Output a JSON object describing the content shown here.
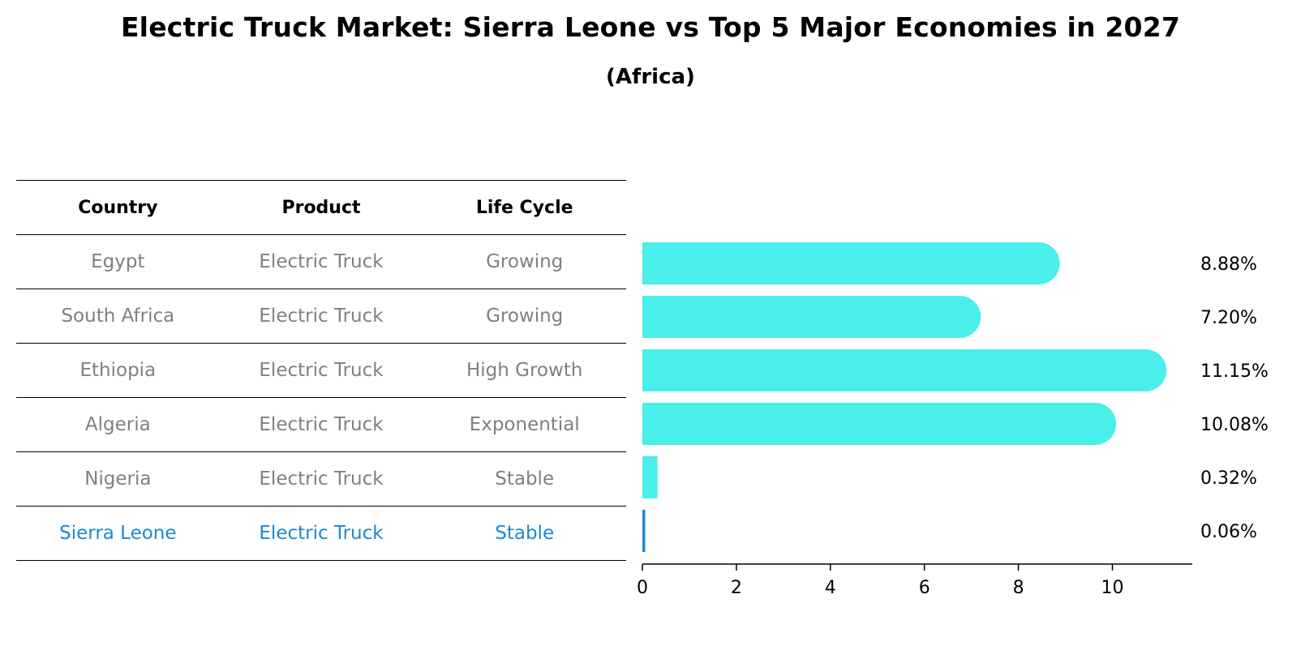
{
  "title": "Electric Truck Market: Sierra Leone vs Top 5 Major Economies in 2027",
  "subtitle": "(Africa)",
  "table": {
    "headers": [
      "Country",
      "Product",
      "Life Cycle"
    ],
    "rows": [
      {
        "country": "Egypt",
        "product": "Electric Truck",
        "life_cycle": "Growing"
      },
      {
        "country": "South Africa",
        "product": "Electric Truck",
        "life_cycle": "Growing"
      },
      {
        "country": "Ethiopia",
        "product": "Electric Truck",
        "life_cycle": "High Growth"
      },
      {
        "country": "Algeria",
        "product": "Electric Truck",
        "life_cycle": "Exponential"
      },
      {
        "country": "Nigeria",
        "product": "Electric Truck",
        "life_cycle": "Stable"
      },
      {
        "country": "Sierra Leone",
        "product": "Electric Truck",
        "life_cycle": "Stable"
      }
    ]
  },
  "chart_data": {
    "type": "bar",
    "orientation": "horizontal",
    "categories": [
      "Egypt",
      "South Africa",
      "Ethiopia",
      "Algeria",
      "Nigeria",
      "Sierra Leone"
    ],
    "values": [
      8.88,
      7.2,
      11.15,
      10.08,
      0.32,
      0.06
    ],
    "value_labels": [
      "8.88%",
      "7.20%",
      "11.15%",
      "10.08%",
      "0.32%",
      "0.06%"
    ],
    "xlim": [
      0,
      11.7
    ],
    "xticks": [
      0,
      2,
      4,
      6,
      8,
      10
    ],
    "grid": false,
    "highlight_category": "Sierra Leone"
  },
  "colors": {
    "bar": "#4aeeea",
    "highlight": "#1f87d2",
    "muted_text": "#808080"
  }
}
